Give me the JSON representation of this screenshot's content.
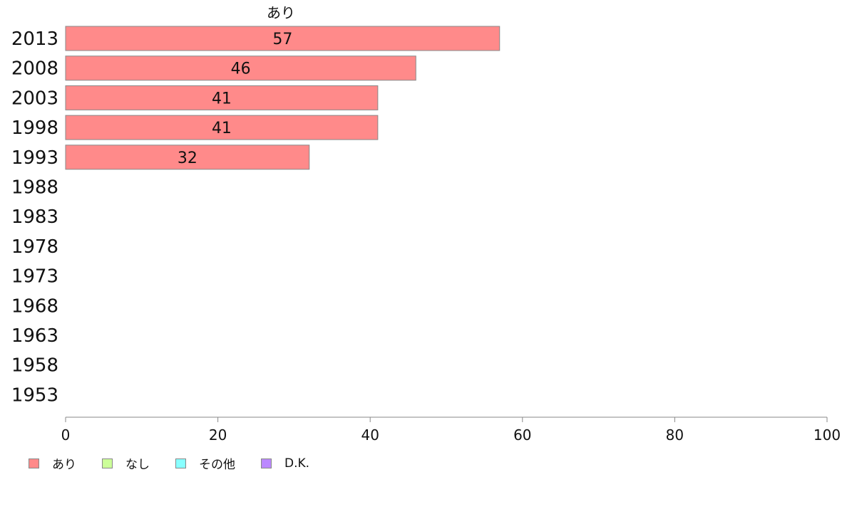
{
  "chart_data": {
    "type": "bar",
    "orientation": "horizontal",
    "categories": [
      "2013",
      "2008",
      "2003",
      "1998",
      "1993",
      "1988",
      "1983",
      "1978",
      "1973",
      "1968",
      "1963",
      "1958",
      "1953"
    ],
    "series": [
      {
        "name": "あり",
        "values": [
          57,
          46,
          41,
          41,
          32,
          null,
          null,
          null,
          null,
          null,
          null,
          null,
          null
        ]
      }
    ],
    "data_labels": [
      "57",
      "46",
      "41",
      "41",
      "32",
      "",
      "",
      "",
      "",
      "",
      "",
      "",
      ""
    ],
    "series_title": "あり",
    "xlim": [
      0,
      100
    ],
    "xticks": [
      "0",
      "20",
      "40",
      "60",
      "80",
      "100"
    ],
    "grid": false,
    "legend": {
      "placement": "bottom-left",
      "items": [
        {
          "label": "あり",
          "color": "#ff8a8a"
        },
        {
          "label": "なし",
          "color": "#ccff99"
        },
        {
          "label": "その他",
          "color": "#88ffff"
        },
        {
          "label": "D.K.",
          "color": "#bb88ff"
        }
      ]
    },
    "colors": {
      "bar_fill": "#ff8a8a",
      "bar_stroke": "#888888",
      "axis": "#888888"
    }
  }
}
